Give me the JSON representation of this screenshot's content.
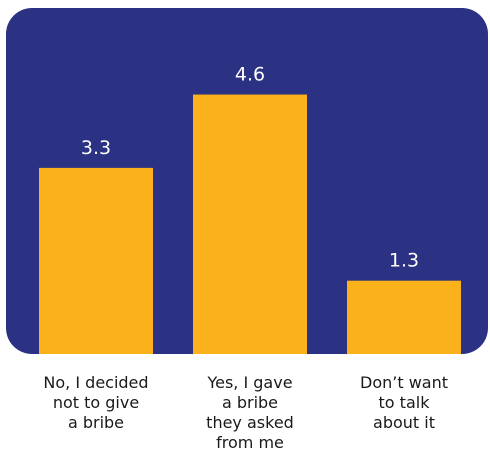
{
  "chart_data": {
    "type": "bar",
    "categories": [
      "No, I decided not to give a bribe",
      "Yes, I gave a bribe they asked from me",
      "Don’t want to talk about it"
    ],
    "category_lines": [
      [
        "No, I decided",
        "not to give",
        "a bribe"
      ],
      [
        "Yes, I gave",
        "a bribe",
        "they asked",
        "from me"
      ],
      [
        "Don’t want",
        "to talk",
        "about it"
      ]
    ],
    "values": [
      3.3,
      4.6,
      1.3
    ],
    "value_labels": [
      "3.3",
      "4.6",
      "1.3"
    ],
    "ylim": [
      0,
      5.0
    ],
    "title": "",
    "xlabel": "",
    "ylabel": "",
    "grid": false
  },
  "colors": {
    "background": "#2b3284",
    "bar": "#fbb21a",
    "value_text": "#ffffff",
    "category_text": "#1a1a1a"
  }
}
